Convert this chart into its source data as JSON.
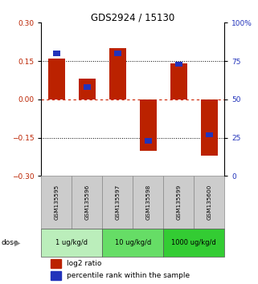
{
  "title": "GDS2924 / 15130",
  "samples": [
    "GSM135595",
    "GSM135596",
    "GSM135597",
    "GSM135598",
    "GSM135599",
    "GSM135600"
  ],
  "log2_ratio": [
    0.16,
    0.08,
    0.2,
    -0.2,
    0.14,
    -0.22
  ],
  "percentile_rank": [
    80,
    58,
    80,
    23,
    73,
    27
  ],
  "dose_groups": [
    {
      "label": "1 ug/kg/d",
      "color": "#bbeebb"
    },
    {
      "label": "10 ug/kg/d",
      "color": "#66dd66"
    },
    {
      "label": "1000 ug/kg/d",
      "color": "#33cc33"
    }
  ],
  "ylim_left": [
    -0.3,
    0.3
  ],
  "ylim_right": [
    0,
    100
  ],
  "yticks_left": [
    -0.3,
    -0.15,
    0,
    0.15,
    0.3
  ],
  "yticks_right": [
    0,
    25,
    50,
    75,
    100
  ],
  "red_color": "#bb2200",
  "blue_color": "#2233bb",
  "hline_color": "#cc2200",
  "dose_label": "dose",
  "legend_red": "log2 ratio",
  "legend_blue": "percentile rank within the sample",
  "sample_cell_color": "#cccccc"
}
